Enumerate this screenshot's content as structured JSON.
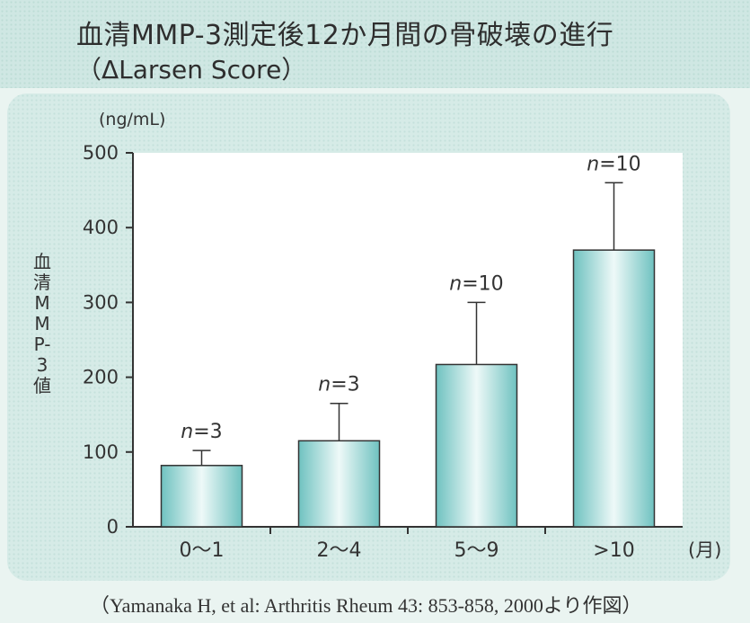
{
  "title": "血清MMP-3測定後12か月間の骨破壊の進行",
  "subtitle": "（ΔLarsen Score）",
  "citation": "（Yamanaka H, et al: Arthritis Rheum 43: 853-858, 2000より作図）",
  "chart_data": {
    "type": "bar",
    "title": "血清MMP-3測定後12か月間の骨破壊の進行",
    "subtitle": "（ΔLarsen Score）",
    "ylabel": "血清MMP-3値",
    "yunit": "(ng/mL)",
    "xunit": "(月)",
    "ylim": [
      0,
      500
    ],
    "yticks": [
      0,
      100,
      200,
      300,
      400,
      500
    ],
    "categories": [
      "0～1",
      "2～4",
      "5～9",
      ">10"
    ],
    "values": [
      82,
      115,
      217,
      370
    ],
    "error_upper": [
      102,
      165,
      300,
      460
    ],
    "n_labels": [
      "n=3",
      "n=3",
      "n=10",
      "n=10"
    ],
    "grid": false,
    "legend": "none"
  }
}
